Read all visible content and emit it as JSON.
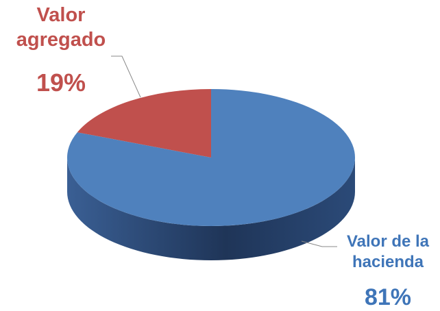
{
  "chart_data": {
    "type": "pie3d",
    "categories": [
      "Valor agregado",
      "Valor de la hacienda"
    ],
    "values": [
      19,
      81
    ],
    "value_labels": [
      "19%",
      "81%"
    ],
    "colors": [
      "#c0504d",
      "#4f81bd"
    ],
    "label_colors": [
      "#c0504d",
      "#3f75b8"
    ]
  }
}
